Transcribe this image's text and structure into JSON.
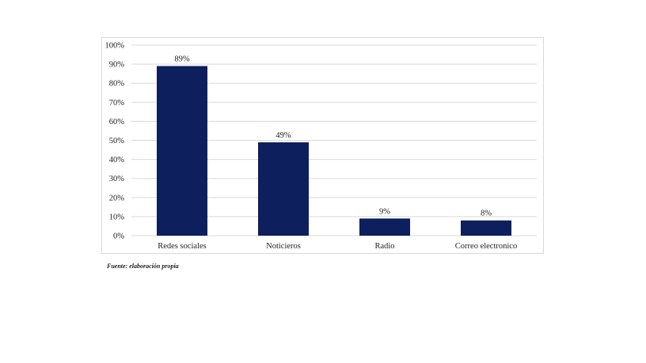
{
  "chart_data": {
    "type": "bar",
    "categories": [
      "Redes sociales",
      "Noticieros",
      "Radio",
      "Correo electronico"
    ],
    "values": [
      89,
      49,
      9,
      8
    ],
    "data_labels": [
      "89%",
      "49%",
      "9%",
      "8%"
    ],
    "ylim": [
      0,
      100
    ],
    "yticks": [
      "0%",
      "10%",
      "20%",
      "30%",
      "40%",
      "50%",
      "60%",
      "70%",
      "80%",
      "90%",
      "100%"
    ],
    "grid": true,
    "bar_color": "#0d1f5c",
    "grid_color": "#d9d9d9"
  },
  "source_note": "Fuente: elaboración propia"
}
